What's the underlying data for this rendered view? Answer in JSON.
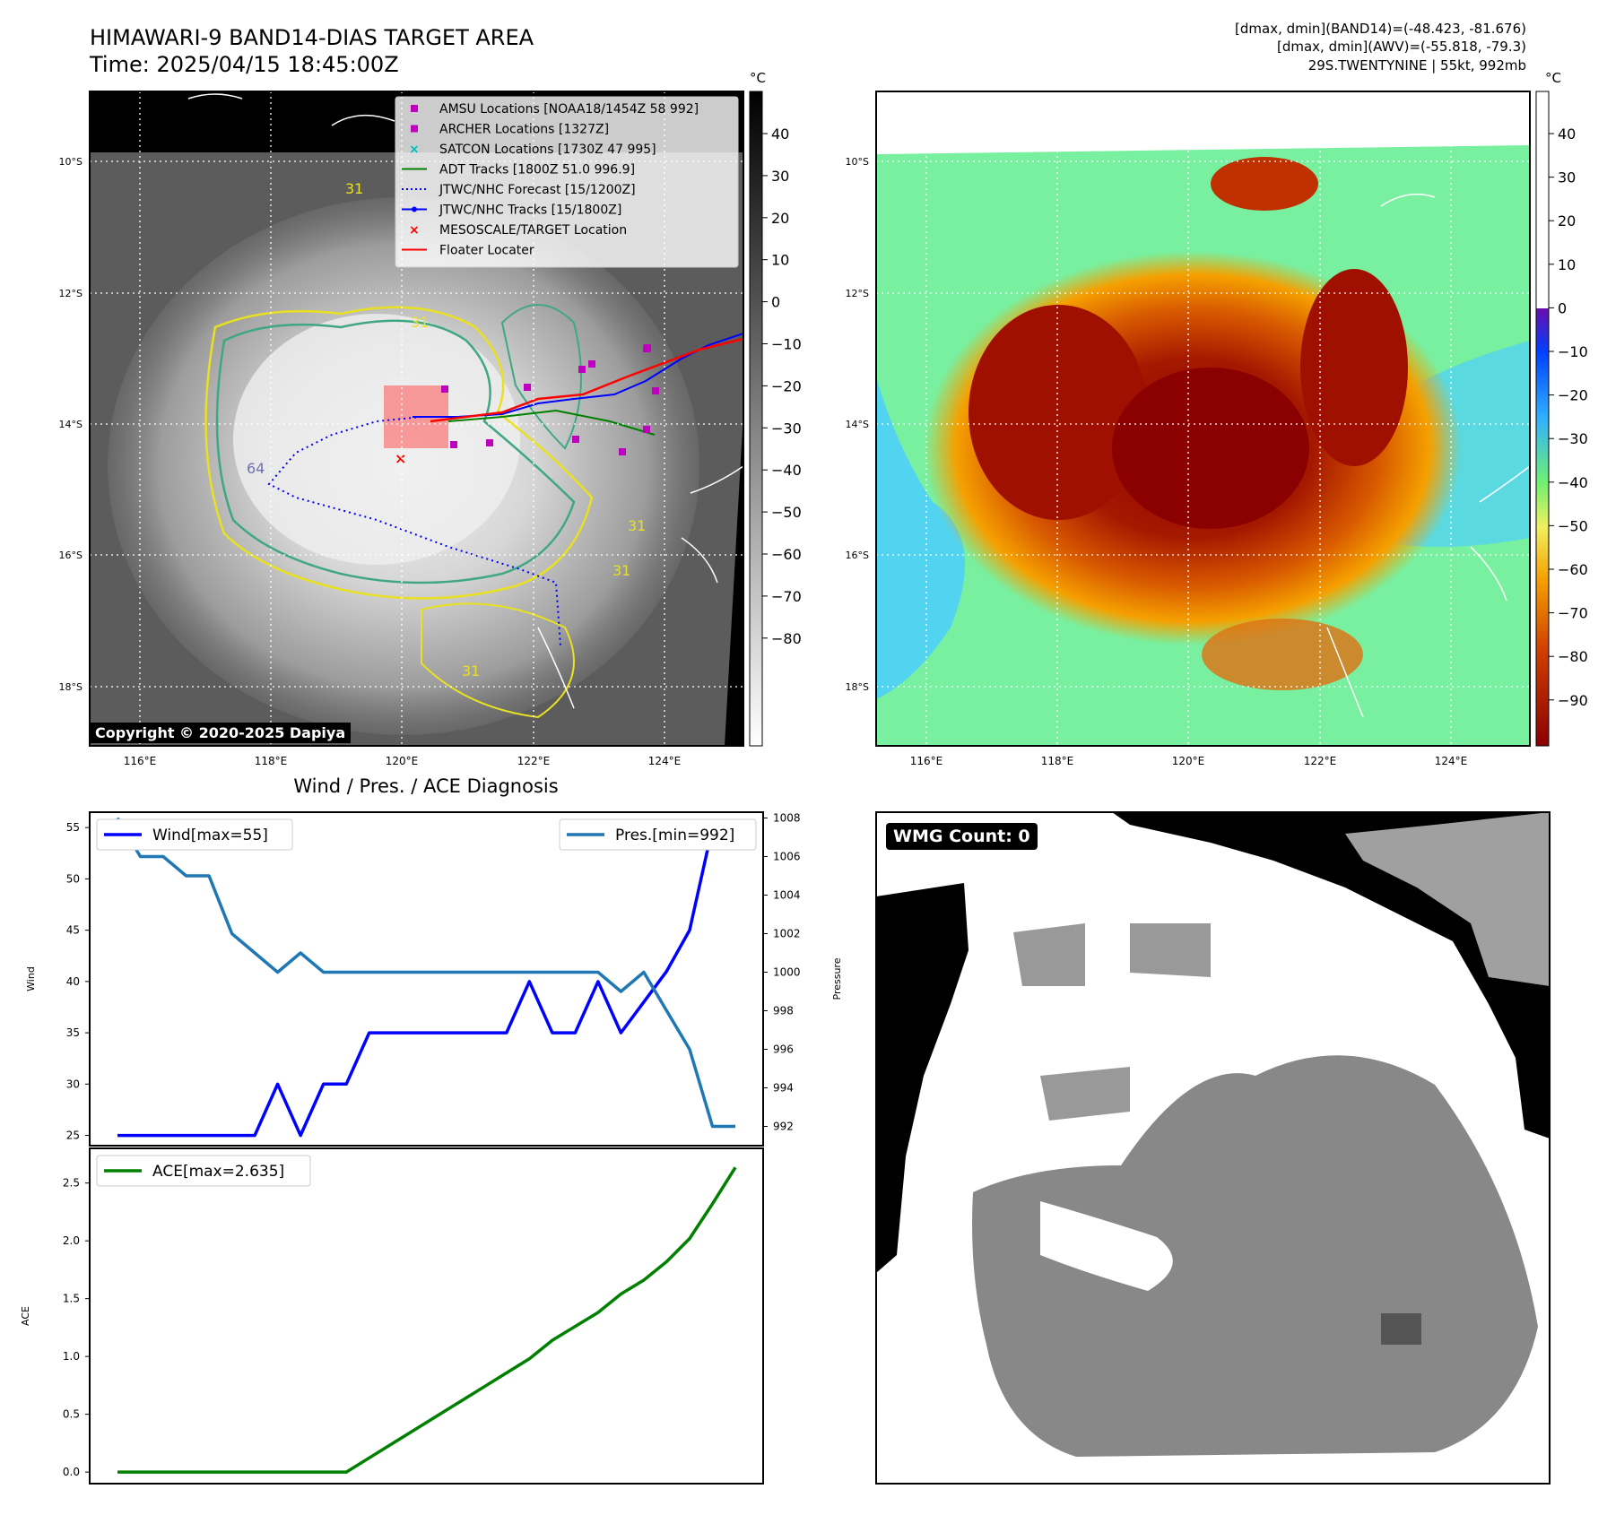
{
  "header": {
    "title_line1": "HIMAWARI-9 BAND14-DIAS TARGET AREA",
    "title_line2": "Time: 2025/04/15 18:45:00Z",
    "stats_line1": "[dmax, dmin](BAND14)=(-48.423, -81.676)",
    "stats_line2": "[dmax, dmin](AWV)=(-55.818, -79.3)",
    "stats_line3": "29S.TWENTYNINE | 55kt, 992mb"
  },
  "map_axes": {
    "lat_ticks": [
      "10°S",
      "12°S",
      "14°S",
      "16°S",
      "18°S"
    ],
    "lon_ticks": [
      "116°E",
      "118°E",
      "120°E",
      "122°E",
      "124°E"
    ],
    "colorbar_unit": "°C",
    "colorbar_left_ticks": [
      "40",
      "30",
      "20",
      "10",
      "0",
      "−10",
      "−20",
      "−30",
      "−40",
      "−50",
      "−60",
      "−70",
      "−80"
    ],
    "colorbar_right_ticks": [
      "40",
      "30",
      "20",
      "10",
      "0",
      "−10",
      "−20",
      "−30",
      "−40",
      "−50",
      "−60",
      "−70",
      "−80",
      "−90"
    ],
    "contour_labels": [
      "31",
      "31",
      "31",
      "31",
      "64",
      "31"
    ]
  },
  "legend": {
    "items": [
      {
        "label": "AMSU Locations [NOAA18/1454Z 58 992]",
        "color": "#bf00bf",
        "marker": "square"
      },
      {
        "label": "ARCHER Locations [1327Z]",
        "color": "#bf00bf",
        "marker": "square"
      },
      {
        "label": "SATCON Locations [1730Z 47 995]",
        "color": "#00bfbf",
        "marker": "x"
      },
      {
        "label": "ADT Tracks [1800Z 51.0 996.9]",
        "color": "#008000",
        "marker": "line"
      },
      {
        "label": "JTWC/NHC Forecast [15/1200Z]",
        "color": "#0000ff",
        "marker": "dotted"
      },
      {
        "label": "JTWC/NHC Tracks [15/1800Z]",
        "color": "#0000ff",
        "marker": "line-dot"
      },
      {
        "label": "MESOSCALE/TARGET Location",
        "color": "#ff0000",
        "marker": "x"
      },
      {
        "label": "Floater Locater",
        "color": "#ff0000",
        "marker": "line"
      }
    ]
  },
  "copyright": "Copyright © 2020-2025 Dapiya",
  "wmg_count": "WMG Count: 0",
  "chart_data": [
    {
      "type": "line",
      "title": "Wind / Pres. / ACE Diagnosis",
      "ylabel": "Wind",
      "ylabel_right": "Pressure",
      "ylim": [
        24,
        56.5
      ],
      "ylim_right": [
        991,
        1008.3
      ],
      "y_ticks": [
        25,
        30,
        35,
        40,
        45,
        50,
        55
      ],
      "y_ticks_right": [
        992,
        994,
        996,
        998,
        1000,
        1002,
        1004,
        1006,
        1008
      ],
      "x": [
        0,
        1,
        2,
        3,
        4,
        5,
        6,
        7,
        8,
        9,
        10,
        11,
        12,
        13,
        14,
        15,
        16,
        17,
        18,
        19,
        20,
        21,
        22,
        23,
        24,
        25,
        26,
        27
      ],
      "series": [
        {
          "name": "Wind[max=55]",
          "color": "#0000ff",
          "axis": "left",
          "values": [
            25,
            25,
            25,
            25,
            25,
            25,
            25,
            30,
            25,
            30,
            30,
            35,
            35,
            35,
            35,
            35,
            35,
            35,
            40,
            35,
            35,
            40,
            35,
            38,
            41,
            45,
            55,
            55
          ]
        },
        {
          "name": "Pres.[min=992]",
          "color": "#1f77b4",
          "axis": "right",
          "values": [
            1008,
            1006,
            1006,
            1005,
            1005,
            1002,
            1001,
            1000,
            1001,
            1000,
            1000,
            1000,
            1000,
            1000,
            1000,
            1000,
            1000,
            1000,
            1000,
            1000,
            1000,
            1000,
            999,
            1000,
            998,
            996,
            992,
            992
          ]
        }
      ]
    },
    {
      "type": "line",
      "ylabel": "ACE",
      "ylim": [
        -0.1,
        2.8
      ],
      "y_ticks": [
        0.0,
        0.5,
        1.0,
        1.5,
        2.0,
        2.5
      ],
      "x": [
        0,
        1,
        2,
        3,
        4,
        5,
        6,
        7,
        8,
        9,
        10,
        11,
        12,
        13,
        14,
        15,
        16,
        17,
        18,
        19,
        20,
        21,
        22,
        23,
        24,
        25,
        26,
        27
      ],
      "series": [
        {
          "name": "ACE[max=2.635]",
          "color": "#008000",
          "values": [
            0,
            0,
            0,
            0,
            0,
            0,
            0,
            0,
            0,
            0,
            0,
            0.1225,
            0.245,
            0.3675,
            0.49,
            0.6125,
            0.735,
            0.8575,
            0.98,
            1.14,
            1.26,
            1.38,
            1.54,
            1.66,
            1.82,
            2.02,
            2.32,
            2.635
          ]
        }
      ]
    }
  ]
}
